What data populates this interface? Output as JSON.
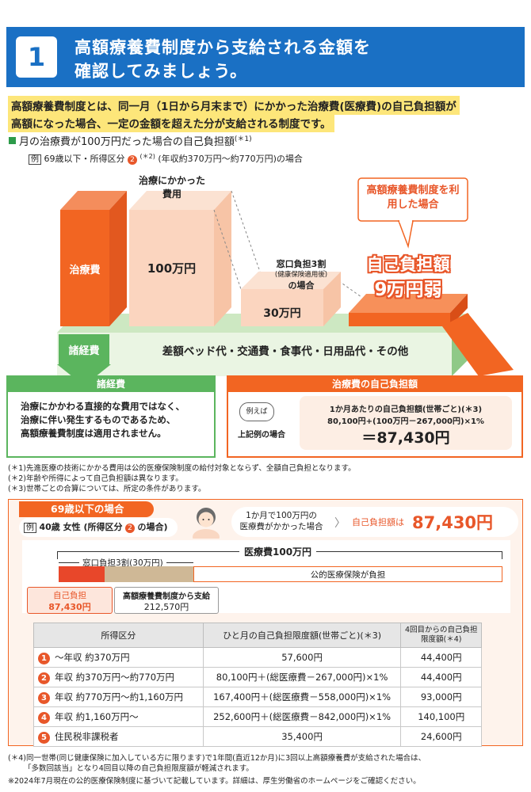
{
  "header": {
    "number": "1",
    "title_line1": "高額療養費制度から支給される金額を",
    "title_line2": "確認してみましょう。"
  },
  "intro": {
    "line1": "高額療養費制度とは、同一月（1日から月末まで）にかかった治療費(医療費)の自己負担額が",
    "line2": "高額になった場合、一定の金額を超えた分が支給される制度です。"
  },
  "section": {
    "heading": "月の治療費が100万円だった場合の自己負担額",
    "heading_note": "(＊1)",
    "example_tag": "例",
    "example_text": "69歳以下・所得区分",
    "example_circle": "2",
    "example_note": "(＊2)",
    "example_rest": "(年収約370万円～約770万円)の場合"
  },
  "diagram": {
    "treatment_label": "治療費",
    "misc_label": "諸経費",
    "cost_label": "治療にかかった費用",
    "cost_value": "100万円",
    "window_label_1": "窓口負担3割",
    "window_label_2": "(健康保険適用後)",
    "window_label_3": "の場合",
    "window_value": "30万円",
    "system_label": "高額療養費制度を利用した場合",
    "self_pay_1": "自己負担額",
    "self_pay_2": "9万円弱",
    "misc_items": "差額ベッド代・交通費・食事代・日用品代・その他"
  },
  "box_left": {
    "title": "諸経費",
    "line1": "治療にかかわる直接的な費用ではなく、",
    "line2": "治療に伴い発生するものであるため、",
    "line3": "高額療養費制度は適用されません。"
  },
  "box_right": {
    "title": "治療費の自己負担額",
    "bubble": "例えば",
    "case": "上記例の場合",
    "calc_title": "1か月あたりの自己負担額(世帯ごと)(＊3)",
    "calc_formula": "80,100円+(100万円－267,000円)×1%",
    "calc_result": "＝87,430円"
  },
  "notes": [
    "(＊1)先進医療の技術にかかる費用は公的医療保険制度の給付対象とならず、全額自己負担となります。",
    "(＊2)年齢や所得によって自己負担額は異なります。",
    "(＊3)世帯ごとの合算については、所定の条件があります。"
  ],
  "panel": {
    "tab": "69歳以下の場合",
    "example_tag": "例",
    "example_text": "40歳 女性 (所得区分",
    "example_circle": "2",
    "example_end": "の場合)",
    "callout_line1": "1か月で100万円の",
    "callout_line2": "医療費がかかった場合",
    "result_label": "自己負担額は",
    "result_value": "87,430円",
    "medical_total": "医療費100万円",
    "window_share": "窓口負担3割(30万円)",
    "public_label": "公的医療保険が負担",
    "self_label": "自己負担",
    "self_value": "87,430円",
    "paid_label": "高額療養費制度から支給",
    "paid_value": "212,570円"
  },
  "table": {
    "headers": [
      "所得区分",
      "ひと月の自己負担限度額(世帯ごと)(＊3)",
      "4回目からの自己負担限度額(＊4)"
    ],
    "rows": [
      {
        "num": "1",
        "category": "～年収 約370万円",
        "limit": "57,600円",
        "limit4": "44,400円"
      },
      {
        "num": "2",
        "category": "年収 約370万円～約770万円",
        "limit": "80,100円＋(総医療費－267,000円)×1%",
        "limit4": "44,400円"
      },
      {
        "num": "3",
        "category": "年収 約770万円～約1,160万円",
        "limit": "167,400円＋(総医療費－558,000円)×1%",
        "limit4": "93,000円"
      },
      {
        "num": "4",
        "category": "年収 約1,160万円～",
        "limit": "252,600円＋(総医療費－842,000円)×1%",
        "limit4": "140,100円"
      },
      {
        "num": "5",
        "category": "住民税非課税者",
        "limit": "35,400円",
        "limit4": "24,600円"
      }
    ]
  },
  "footer": {
    "note4_1": "(＊4)同一世帯(同じ健康保険に加入している方に限ります)で1年間(直近12か月)に3回以上高額療養費が支給された場合は、",
    "note4_2": "「多数回該当」となり4回目以降の自己負担限度額が軽減されます。",
    "note5": "※2024年7月現在の公的医療保険制度に基づいて記載しています。詳細は、厚生労働省のホームページをご確認ください。"
  },
  "colors": {
    "blue": "#1a70c4",
    "orange": "#f26522",
    "green": "#5bb55e",
    "highlight": "#fde67a"
  }
}
